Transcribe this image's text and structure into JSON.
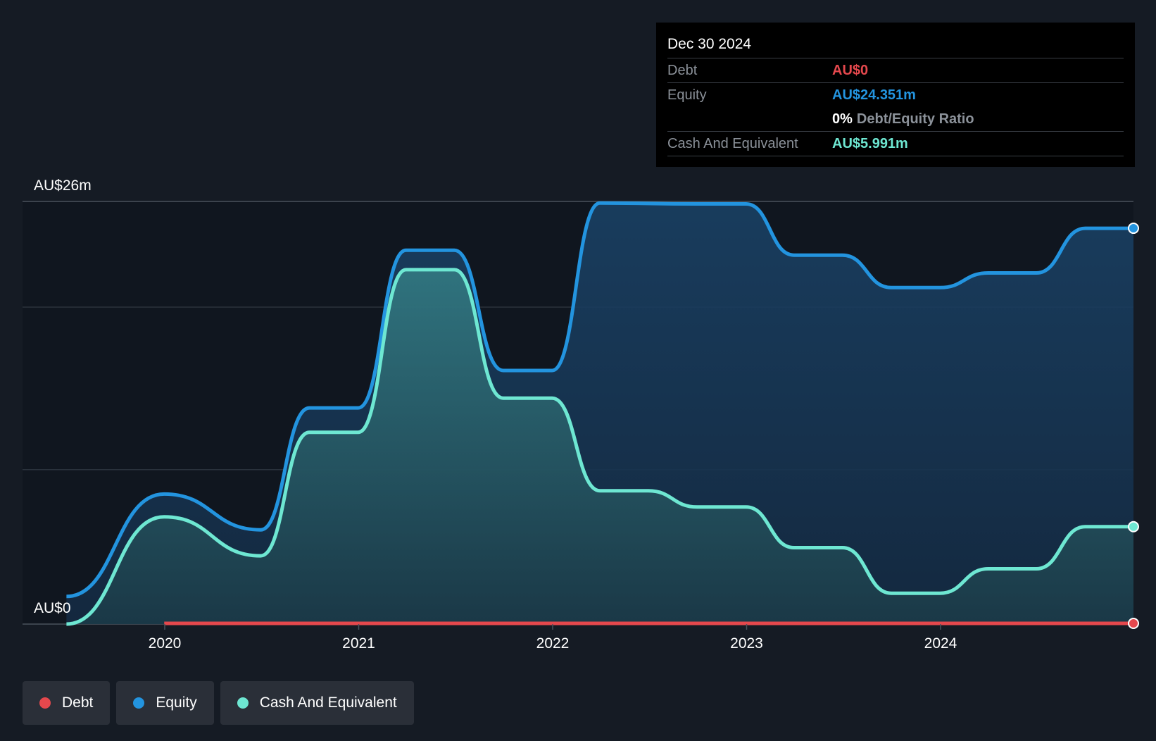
{
  "tooltip": {
    "date": "Dec 30 2024",
    "debt_label": "Debt",
    "debt_value": "AU$0",
    "equity_label": "Equity",
    "equity_value": "AU$24.351m",
    "ratio_value": "0%",
    "ratio_label": "Debt/Equity Ratio",
    "cash_label": "Cash And Equivalent",
    "cash_value": "AU$5.991m"
  },
  "legend": [
    {
      "label": "Debt",
      "color": "#e5484d"
    },
    {
      "label": "Equity",
      "color": "#2394df"
    },
    {
      "label": "Cash And Equivalent",
      "color": "#6ee7d2"
    }
  ],
  "chart_data": {
    "type": "area",
    "y_top_label": "AU$26m",
    "y_bottom_label": "AU$0",
    "ylim": [
      0,
      26
    ],
    "x_ticks": [
      "2020",
      "2021",
      "2022",
      "2023",
      "2024"
    ],
    "grid": true,
    "colors": {
      "debt": "#e5484d",
      "equity": "#2394df",
      "cash": "#6ee7d2"
    },
    "series": [
      {
        "name": "Equity",
        "points": [
          [
            "2019-06-30",
            1.7
          ],
          [
            "2019-12-31",
            8.0
          ],
          [
            "2020-06-30",
            5.8
          ],
          [
            "2020-09-30",
            13.3
          ],
          [
            "2020-12-31",
            13.3
          ],
          [
            "2021-03-31",
            23.0
          ],
          [
            "2021-06-30",
            23.0
          ],
          [
            "2021-09-30",
            15.6
          ],
          [
            "2021-12-31",
            15.6
          ],
          [
            "2022-03-31",
            25.9
          ],
          [
            "2022-09-30",
            25.85
          ],
          [
            "2022-12-31",
            25.85
          ],
          [
            "2023-03-31",
            22.7
          ],
          [
            "2023-06-30",
            22.7
          ],
          [
            "2023-09-30",
            20.7
          ],
          [
            "2023-12-31",
            20.7
          ],
          [
            "2024-03-31",
            21.6
          ],
          [
            "2024-06-30",
            21.6
          ],
          [
            "2024-09-30",
            24.35
          ],
          [
            "2024-12-30",
            24.351
          ]
        ]
      },
      {
        "name": "Cash And Equivalent",
        "points": [
          [
            "2019-06-30",
            0.0
          ],
          [
            "2019-12-31",
            6.6
          ],
          [
            "2020-06-30",
            4.2
          ],
          [
            "2020-09-30",
            11.8
          ],
          [
            "2020-12-31",
            11.8
          ],
          [
            "2021-03-31",
            21.8
          ],
          [
            "2021-06-30",
            21.8
          ],
          [
            "2021-09-30",
            13.9
          ],
          [
            "2021-12-31",
            13.9
          ],
          [
            "2022-03-31",
            8.2
          ],
          [
            "2022-06-30",
            8.2
          ],
          [
            "2022-09-30",
            7.2
          ],
          [
            "2022-12-31",
            7.2
          ],
          [
            "2023-03-31",
            4.7
          ],
          [
            "2023-06-30",
            4.7
          ],
          [
            "2023-09-30",
            1.9
          ],
          [
            "2023-12-31",
            1.9
          ],
          [
            "2024-03-31",
            3.4
          ],
          [
            "2024-06-30",
            3.4
          ],
          [
            "2024-09-30",
            5.99
          ],
          [
            "2024-12-30",
            5.991
          ]
        ]
      },
      {
        "name": "Debt",
        "points": [
          [
            "2019-12-31",
            0.0
          ],
          [
            "2024-12-30",
            0.0
          ]
        ]
      }
    ]
  }
}
